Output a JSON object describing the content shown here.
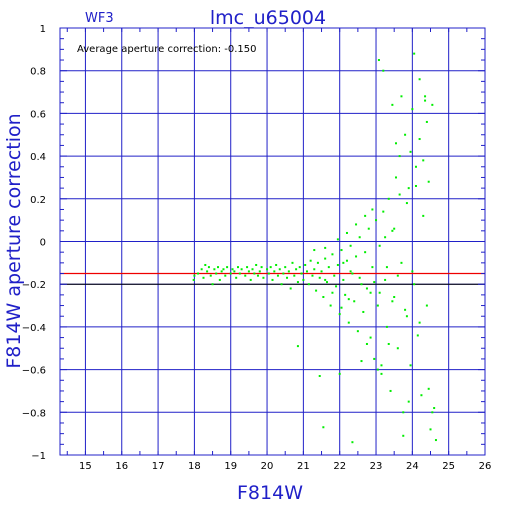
{
  "chart_data": {
    "type": "scatter",
    "panel_label": "WF3",
    "title": "lmc_u65004",
    "annotation": "Average aperture correction: -0.150",
    "xlabel": "F814W",
    "ylabel": "F814W aperture correction",
    "xlim": [
      14.3,
      26
    ],
    "ylim": [
      -1,
      1
    ],
    "xticks": [
      "15",
      "16",
      "17",
      "18",
      "19",
      "20",
      "21",
      "22",
      "23",
      "24",
      "25",
      "26"
    ],
    "yticks": [
      "1",
      "0.8",
      "0.6",
      "0.4",
      "0.2",
      "0",
      "-0.2",
      "-0.4",
      "-0.6",
      "-0.8",
      "-1"
    ],
    "grid": true,
    "reference_line": {
      "y": -0.15,
      "label": "average aperture correction"
    },
    "colors": {
      "axes": "#2020c8",
      "grid": "#2020c8",
      "points": "#00ee00",
      "reference_line": "#ee0000",
      "zero_line": "#000000"
    },
    "points": [
      [
        17.98,
        -0.18
      ],
      [
        18.0,
        -0.16
      ],
      [
        18.1,
        -0.15
      ],
      [
        18.2,
        -0.13
      ],
      [
        18.25,
        -0.17
      ],
      [
        18.3,
        -0.11
      ],
      [
        18.35,
        -0.14
      ],
      [
        18.4,
        -0.12
      ],
      [
        18.45,
        -0.16
      ],
      [
        18.5,
        -0.2
      ],
      [
        18.55,
        -0.13
      ],
      [
        18.6,
        -0.15
      ],
      [
        18.65,
        -0.12
      ],
      [
        18.7,
        -0.18
      ],
      [
        18.75,
        -0.14
      ],
      [
        18.8,
        -0.13
      ],
      [
        18.85,
        -0.16
      ],
      [
        18.9,
        -0.12
      ],
      [
        19.0,
        -0.15
      ],
      [
        19.05,
        -0.13
      ],
      [
        19.1,
        -0.14
      ],
      [
        19.15,
        -0.17
      ],
      [
        19.2,
        -0.12
      ],
      [
        19.25,
        -0.15
      ],
      [
        19.3,
        -0.13
      ],
      [
        19.4,
        -0.16
      ],
      [
        19.45,
        -0.12
      ],
      [
        19.5,
        -0.14
      ],
      [
        19.55,
        -0.18
      ],
      [
        19.6,
        -0.13
      ],
      [
        19.65,
        -0.15
      ],
      [
        19.7,
        -0.11
      ],
      [
        19.75,
        -0.16
      ],
      [
        19.8,
        -0.14
      ],
      [
        19.85,
        -0.12
      ],
      [
        19.9,
        -0.17
      ],
      [
        20.0,
        -0.13
      ],
      [
        20.05,
        -0.15
      ],
      [
        20.1,
        -0.12
      ],
      [
        20.15,
        -0.18
      ],
      [
        20.2,
        -0.14
      ],
      [
        20.25,
        -0.11
      ],
      [
        20.3,
        -0.16
      ],
      [
        20.35,
        -0.13
      ],
      [
        20.4,
        -0.2
      ],
      [
        20.45,
        -0.15
      ],
      [
        20.5,
        -0.12
      ],
      [
        20.55,
        -0.17
      ],
      [
        20.6,
        -0.14
      ],
      [
        20.65,
        -0.22
      ],
      [
        20.7,
        -0.1
      ],
      [
        20.75,
        -0.16
      ],
      [
        20.8,
        -0.13
      ],
      [
        20.85,
        -0.19
      ],
      [
        20.9,
        -0.12
      ],
      [
        20.95,
        -0.15
      ],
      [
        21.0,
        -0.18
      ],
      [
        21.05,
        -0.11
      ],
      [
        21.1,
        -0.14
      ],
      [
        21.15,
        -0.2
      ],
      [
        21.2,
        -0.09
      ],
      [
        21.25,
        -0.16
      ],
      [
        21.3,
        -0.13
      ],
      [
        21.35,
        -0.23
      ],
      [
        21.4,
        -0.1
      ],
      [
        21.45,
        -0.17
      ],
      [
        21.5,
        -0.14
      ],
      [
        21.55,
        -0.26
      ],
      [
        21.6,
        -0.08
      ],
      [
        21.65,
        -0.19
      ],
      [
        21.7,
        -0.12
      ],
      [
        21.75,
        -0.3
      ],
      [
        21.8,
        -0.06
      ],
      [
        21.85,
        -0.16
      ],
      [
        21.9,
        -0.21
      ],
      [
        21.95,
        -0.11
      ],
      [
        22.0,
        -0.34
      ],
      [
        22.05,
        -0.04
      ],
      [
        22.1,
        -0.18
      ],
      [
        22.15,
        -0.25
      ],
      [
        22.2,
        -0.09
      ],
      [
        22.25,
        -0.38
      ],
      [
        22.3,
        -0.02
      ],
      [
        22.35,
        -0.15
      ],
      [
        22.4,
        -0.28
      ],
      [
        22.45,
        -0.07
      ],
      [
        22.5,
        -0.42
      ],
      [
        22.55,
        0.02
      ],
      [
        22.6,
        -0.2
      ],
      [
        22.65,
        -0.33
      ],
      [
        22.7,
        -0.05
      ],
      [
        22.75,
        -0.48
      ],
      [
        22.8,
        0.06
      ],
      [
        22.85,
        -0.24
      ],
      [
        22.9,
        -0.12
      ],
      [
        22.95,
        -0.55
      ],
      [
        23.0,
        0.1
      ],
      [
        23.05,
        -0.3
      ],
      [
        23.1,
        -0.02
      ],
      [
        23.15,
        -0.62
      ],
      [
        23.2,
        0.14
      ],
      [
        23.25,
        -0.18
      ],
      [
        23.3,
        -0.4
      ],
      [
        23.35,
        0.2
      ],
      [
        23.4,
        -0.7
      ],
      [
        23.45,
        0.05
      ],
      [
        23.5,
        -0.26
      ],
      [
        23.55,
        0.3
      ],
      [
        23.6,
        -0.5
      ],
      [
        23.65,
        0.4
      ],
      [
        23.7,
        -0.1
      ],
      [
        23.75,
        -0.8
      ],
      [
        23.8,
        0.5
      ],
      [
        23.85,
        -0.35
      ],
      [
        23.9,
        0.25
      ],
      [
        23.95,
        -0.58
      ],
      [
        24.0,
        0.62
      ],
      [
        24.05,
        -0.2
      ],
      [
        24.1,
        0.35
      ],
      [
        24.15,
        -0.44
      ],
      [
        24.2,
        0.48
      ],
      [
        24.25,
        -0.72
      ],
      [
        24.3,
        0.12
      ],
      [
        24.35,
        0.68
      ],
      [
        24.4,
        -0.3
      ],
      [
        24.45,
        0.28
      ],
      [
        24.5,
        -0.88
      ],
      [
        24.55,
        0.64
      ],
      [
        23.08,
        0.85
      ],
      [
        23.2,
        0.8
      ],
      [
        23.45,
        0.64
      ],
      [
        23.7,
        0.68
      ],
      [
        24.05,
        0.88
      ],
      [
        24.2,
        0.76
      ],
      [
        24.35,
        0.66
      ],
      [
        21.55,
        -0.87
      ],
      [
        22.35,
        -0.94
      ],
      [
        23.75,
        -0.91
      ],
      [
        24.65,
        -0.93
      ],
      [
        24.55,
        -0.8
      ],
      [
        20.85,
        -0.49
      ],
      [
        21.45,
        -0.63
      ],
      [
        22.0,
        -0.62
      ],
      [
        23.05,
        -0.6
      ],
      [
        23.15,
        -0.58
      ],
      [
        24.45,
        -0.69
      ],
      [
        24.6,
        -0.78
      ],
      [
        23.9,
        -0.75
      ],
      [
        22.85,
        -0.45
      ],
      [
        22.6,
        -0.56
      ],
      [
        23.35,
        -0.48
      ],
      [
        21.3,
        -0.04
      ],
      [
        21.6,
        -0.03
      ],
      [
        21.95,
        0.01
      ],
      [
        22.2,
        0.04
      ],
      [
        22.45,
        0.08
      ],
      [
        22.7,
        0.12
      ],
      [
        22.9,
        0.15
      ],
      [
        23.25,
        0.02
      ],
      [
        23.5,
        0.06
      ],
      [
        23.65,
        0.22
      ],
      [
        23.85,
        0.18
      ],
      [
        24.1,
        0.26
      ],
      [
        24.3,
        0.38
      ],
      [
        23.95,
        0.42
      ],
      [
        23.55,
        0.46
      ],
      [
        24.4,
        0.56
      ],
      [
        22.1,
        -0.1
      ],
      [
        22.3,
        -0.14
      ],
      [
        22.55,
        -0.17
      ],
      [
        22.75,
        -0.22
      ],
      [
        22.95,
        -0.19
      ],
      [
        23.1,
        -0.24
      ],
      [
        23.3,
        -0.12
      ],
      [
        23.45,
        -0.28
      ],
      [
        23.6,
        -0.16
      ],
      [
        23.8,
        -0.32
      ],
      [
        24.0,
        -0.14
      ],
      [
        24.2,
        -0.38
      ],
      [
        21.8,
        -0.24
      ],
      [
        21.6,
        -0.18
      ],
      [
        22.25,
        -0.27
      ],
      [
        22.05,
        -0.31
      ]
    ]
  }
}
